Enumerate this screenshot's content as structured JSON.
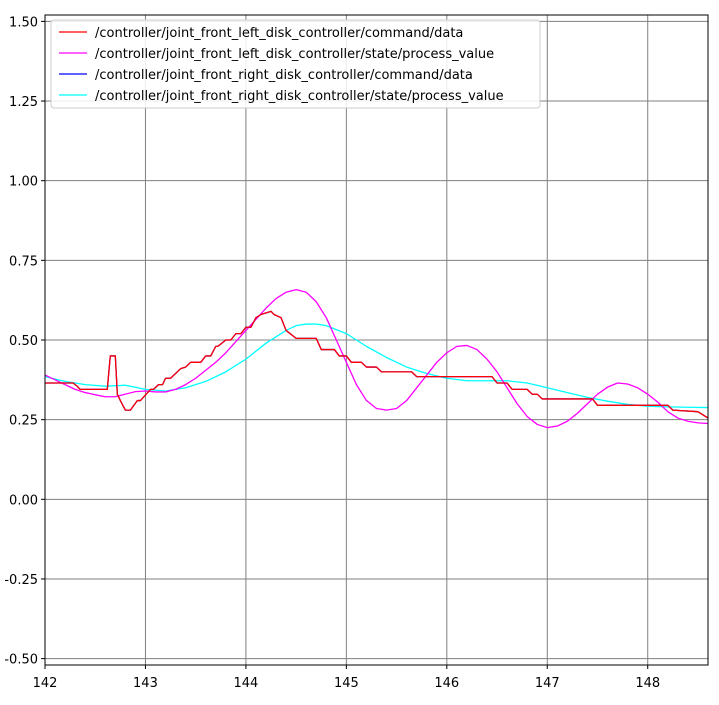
{
  "chart_data": {
    "type": "line",
    "title": "",
    "xlabel": "",
    "ylabel": "",
    "xlim": [
      142.0,
      148.6
    ],
    "ylim": [
      -0.52,
      1.52
    ],
    "grid": true,
    "legend_position": "top-left",
    "x_ticks": [
      {
        "value": 142,
        "label": "142"
      },
      {
        "value": 143,
        "label": "143"
      },
      {
        "value": 144,
        "label": "144"
      },
      {
        "value": 145,
        "label": "145"
      },
      {
        "value": 146,
        "label": "146"
      },
      {
        "value": 147,
        "label": "147"
      },
      {
        "value": 148,
        "label": "148"
      }
    ],
    "y_ticks": [
      {
        "value": -0.5,
        "label": "-0.50"
      },
      {
        "value": -0.25,
        "label": "-0.25"
      },
      {
        "value": 0.0,
        "label": "0.00"
      },
      {
        "value": 0.25,
        "label": "0.25"
      },
      {
        "value": 0.5,
        "label": "0.50"
      },
      {
        "value": 0.75,
        "label": "0.75"
      },
      {
        "value": 1.0,
        "label": "1.00"
      },
      {
        "value": 1.25,
        "label": "1.25"
      },
      {
        "value": 1.5,
        "label": "1.50"
      }
    ],
    "series": [
      {
        "name": "/controller/joint_front_left_disk_controller/command/data",
        "color": "#ff0000",
        "x": [
          142.0,
          142.28,
          142.32,
          142.35,
          142.62,
          142.65,
          142.7,
          142.72,
          142.75,
          142.8,
          142.83,
          142.85,
          142.92,
          142.95,
          143.05,
          143.08,
          143.13,
          143.17,
          143.2,
          143.25,
          143.35,
          143.4,
          143.45,
          143.55,
          143.6,
          143.65,
          143.7,
          143.72,
          143.8,
          143.85,
          143.9,
          143.95,
          144.0,
          144.05,
          144.1,
          144.15,
          144.25,
          144.28,
          144.35,
          144.4,
          144.5,
          144.55,
          144.6,
          144.7,
          144.75,
          144.88,
          144.93,
          145.0,
          145.05,
          145.15,
          145.2,
          145.3,
          145.35,
          145.65,
          145.7,
          145.8,
          146.45,
          146.5,
          146.6,
          146.65,
          146.8,
          146.85,
          146.9,
          146.95,
          147.45,
          147.5,
          147.8,
          148.2,
          148.25,
          148.5,
          148.6
        ],
        "y": [
          0.365,
          0.365,
          0.355,
          0.345,
          0.345,
          0.45,
          0.45,
          0.33,
          0.31,
          0.28,
          0.28,
          0.28,
          0.31,
          0.31,
          0.345,
          0.345,
          0.36,
          0.36,
          0.38,
          0.38,
          0.41,
          0.415,
          0.43,
          0.43,
          0.45,
          0.45,
          0.48,
          0.48,
          0.5,
          0.5,
          0.52,
          0.52,
          0.54,
          0.54,
          0.57,
          0.58,
          0.59,
          0.58,
          0.57,
          0.53,
          0.505,
          0.505,
          0.505,
          0.505,
          0.47,
          0.47,
          0.45,
          0.45,
          0.43,
          0.43,
          0.415,
          0.415,
          0.4,
          0.4,
          0.385,
          0.385,
          0.385,
          0.365,
          0.365,
          0.345,
          0.345,
          0.33,
          0.33,
          0.315,
          0.315,
          0.295,
          0.295,
          0.295,
          0.28,
          0.275,
          0.255
        ]
      },
      {
        "name": "/controller/joint_front_left_disk_controller/state/process_value",
        "color": "#ff00ff",
        "x": [
          142.0,
          142.1,
          142.2,
          142.3,
          142.4,
          142.5,
          142.6,
          142.7,
          142.8,
          142.9,
          143.0,
          143.1,
          143.2,
          143.3,
          143.4,
          143.5,
          143.6,
          143.7,
          143.8,
          143.9,
          144.0,
          144.1,
          144.2,
          144.3,
          144.4,
          144.5,
          144.6,
          144.7,
          144.8,
          144.9,
          145.0,
          145.1,
          145.2,
          145.3,
          145.4,
          145.5,
          145.6,
          145.7,
          145.8,
          145.9,
          146.0,
          146.1,
          146.2,
          146.3,
          146.4,
          146.5,
          146.6,
          146.7,
          146.8,
          146.9,
          147.0,
          147.1,
          147.2,
          147.3,
          147.4,
          147.5,
          147.6,
          147.7,
          147.8,
          147.9,
          148.0,
          148.1,
          148.2,
          148.3,
          148.4,
          148.5,
          148.6
        ],
        "y": [
          0.39,
          0.375,
          0.36,
          0.345,
          0.335,
          0.328,
          0.322,
          0.322,
          0.33,
          0.338,
          0.34,
          0.337,
          0.337,
          0.345,
          0.36,
          0.38,
          0.405,
          0.43,
          0.46,
          0.495,
          0.53,
          0.565,
          0.6,
          0.63,
          0.65,
          0.658,
          0.65,
          0.62,
          0.57,
          0.5,
          0.43,
          0.36,
          0.31,
          0.285,
          0.28,
          0.285,
          0.31,
          0.35,
          0.39,
          0.43,
          0.46,
          0.48,
          0.483,
          0.47,
          0.44,
          0.4,
          0.35,
          0.3,
          0.26,
          0.235,
          0.225,
          0.23,
          0.245,
          0.27,
          0.3,
          0.33,
          0.352,
          0.365,
          0.362,
          0.35,
          0.33,
          0.305,
          0.275,
          0.255,
          0.245,
          0.24,
          0.238
        ]
      },
      {
        "name": "/controller/joint_front_right_disk_controller/command/data",
        "color": "#0000ff",
        "x": [
          142.0,
          142.28,
          142.32,
          142.35,
          142.62,
          142.65,
          142.7,
          142.72,
          142.75,
          142.8,
          142.83,
          142.85,
          142.92,
          142.95,
          143.05,
          143.08,
          143.13,
          143.17,
          143.2,
          143.25,
          143.35,
          143.4,
          143.45,
          143.55,
          143.6,
          143.65,
          143.7,
          143.72,
          143.8,
          143.85,
          143.9,
          143.95,
          144.0,
          144.05,
          144.1,
          144.15,
          144.25,
          144.28,
          144.35,
          144.4,
          144.5,
          144.55,
          144.6,
          144.7,
          144.75,
          144.88,
          144.93,
          145.0,
          145.05,
          145.15,
          145.2,
          145.3,
          145.35,
          145.65,
          145.7,
          145.8,
          146.45,
          146.5,
          146.6,
          146.65,
          146.8,
          146.85,
          146.9,
          146.95,
          147.45,
          147.5,
          147.8,
          148.2,
          148.25,
          148.5,
          148.6
        ],
        "y": [
          0.365,
          0.365,
          0.355,
          0.345,
          0.345,
          0.45,
          0.45,
          0.33,
          0.31,
          0.28,
          0.28,
          0.28,
          0.31,
          0.31,
          0.345,
          0.345,
          0.36,
          0.36,
          0.38,
          0.38,
          0.41,
          0.415,
          0.43,
          0.43,
          0.45,
          0.45,
          0.48,
          0.48,
          0.5,
          0.5,
          0.52,
          0.52,
          0.54,
          0.54,
          0.57,
          0.58,
          0.59,
          0.58,
          0.57,
          0.53,
          0.505,
          0.505,
          0.505,
          0.505,
          0.47,
          0.47,
          0.45,
          0.45,
          0.43,
          0.43,
          0.415,
          0.415,
          0.4,
          0.4,
          0.385,
          0.385,
          0.385,
          0.365,
          0.365,
          0.345,
          0.345,
          0.33,
          0.33,
          0.315,
          0.315,
          0.295,
          0.295,
          0.295,
          0.28,
          0.275,
          0.255
        ]
      },
      {
        "name": "/controller/joint_front_right_disk_controller/state/process_value",
        "color": "#00ffff",
        "x": [
          142.0,
          142.2,
          142.4,
          142.6,
          142.8,
          143.0,
          143.2,
          143.4,
          143.6,
          143.8,
          144.0,
          144.2,
          144.4,
          144.5,
          144.6,
          144.7,
          144.8,
          145.0,
          145.2,
          145.4,
          145.6,
          145.8,
          146.0,
          146.2,
          146.4,
          146.6,
          146.8,
          147.0,
          147.2,
          147.4,
          147.6,
          147.8,
          148.0,
          148.2,
          148.4,
          148.6
        ],
        "y": [
          0.385,
          0.37,
          0.36,
          0.355,
          0.358,
          0.345,
          0.34,
          0.35,
          0.37,
          0.4,
          0.44,
          0.49,
          0.53,
          0.545,
          0.55,
          0.55,
          0.545,
          0.52,
          0.48,
          0.445,
          0.415,
          0.395,
          0.38,
          0.372,
          0.372,
          0.372,
          0.365,
          0.35,
          0.335,
          0.32,
          0.308,
          0.298,
          0.292,
          0.29,
          0.289,
          0.288
        ]
      }
    ]
  }
}
